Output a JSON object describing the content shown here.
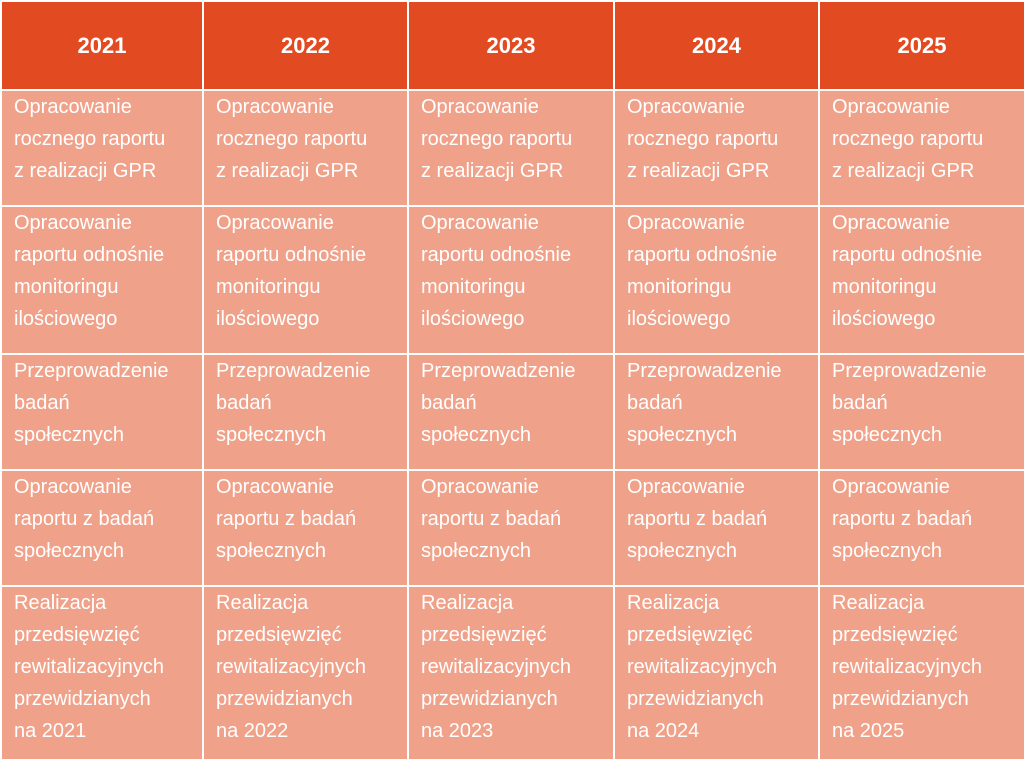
{
  "table": {
    "headers": [
      "2021",
      "2022",
      "2023",
      "2024",
      "2025"
    ],
    "rows": [
      [
        "Opracowanie\nrocznego raportu\nz realizacji GPR",
        "Opracowanie\nrocznego raportu\nz realizacji GPR",
        "Opracowanie\nrocznego raportu\nz realizacji GPR",
        "Opracowanie\nrocznego raportu\nz realizacji GPR",
        "Opracowanie\nrocznego raportu\nz realizacji GPR"
      ],
      [
        "Opracowanie\nraportu odnośnie\nmonitoringu\nilościowego",
        "Opracowanie\nraportu odnośnie\nmonitoringu\nilościowego",
        "Opracowanie\nraportu odnośnie\nmonitoringu\nilościowego",
        "Opracowanie\nraportu odnośnie\nmonitoringu\nilościowego",
        "Opracowanie\nraportu odnośnie\nmonitoringu\nilościowego"
      ],
      [
        "Przeprowadzenie\nbadań\nspołecznych",
        "Przeprowadzenie\nbadań\nspołecznych",
        "Przeprowadzenie\nbadań\nspołecznych",
        "Przeprowadzenie\nbadań\nspołecznych",
        "Przeprowadzenie\nbadań\nspołecznych"
      ],
      [
        "Opracowanie\nraportu z badań\nspołecznych",
        "Opracowanie\nraportu z badań\nspołecznych",
        "Opracowanie\nraportu z badań\nspołecznych",
        "Opracowanie\nraportu z badań\nspołecznych",
        "Opracowanie\nraportu z badań\nspołecznych"
      ],
      [
        "Realizacja\nprzedsięwzięć\nrewitalizacyjnych\nprzewidzianych\nna 2021",
        "Realizacja\nprzedsięwzięć\nrewitalizacyjnych\nprzewidzianych\nna 2022",
        "Realizacja\nprzedsięwzięć\nrewitalizacyjnych\nprzewidzianych\nna 2023",
        "Realizacja\nprzedsięwzięć\nrewitalizacyjnych\nprzewidzianych\nna 2024",
        "Realizacja\nprzedsięwzięć\nrewitalizacyjnych\nprzewidzianych\nna 2025"
      ]
    ]
  },
  "colors": {
    "header_bg": "#e24b22",
    "cell_bg": "#f0a189",
    "text": "#ffffff",
    "border": "#ffffff"
  }
}
